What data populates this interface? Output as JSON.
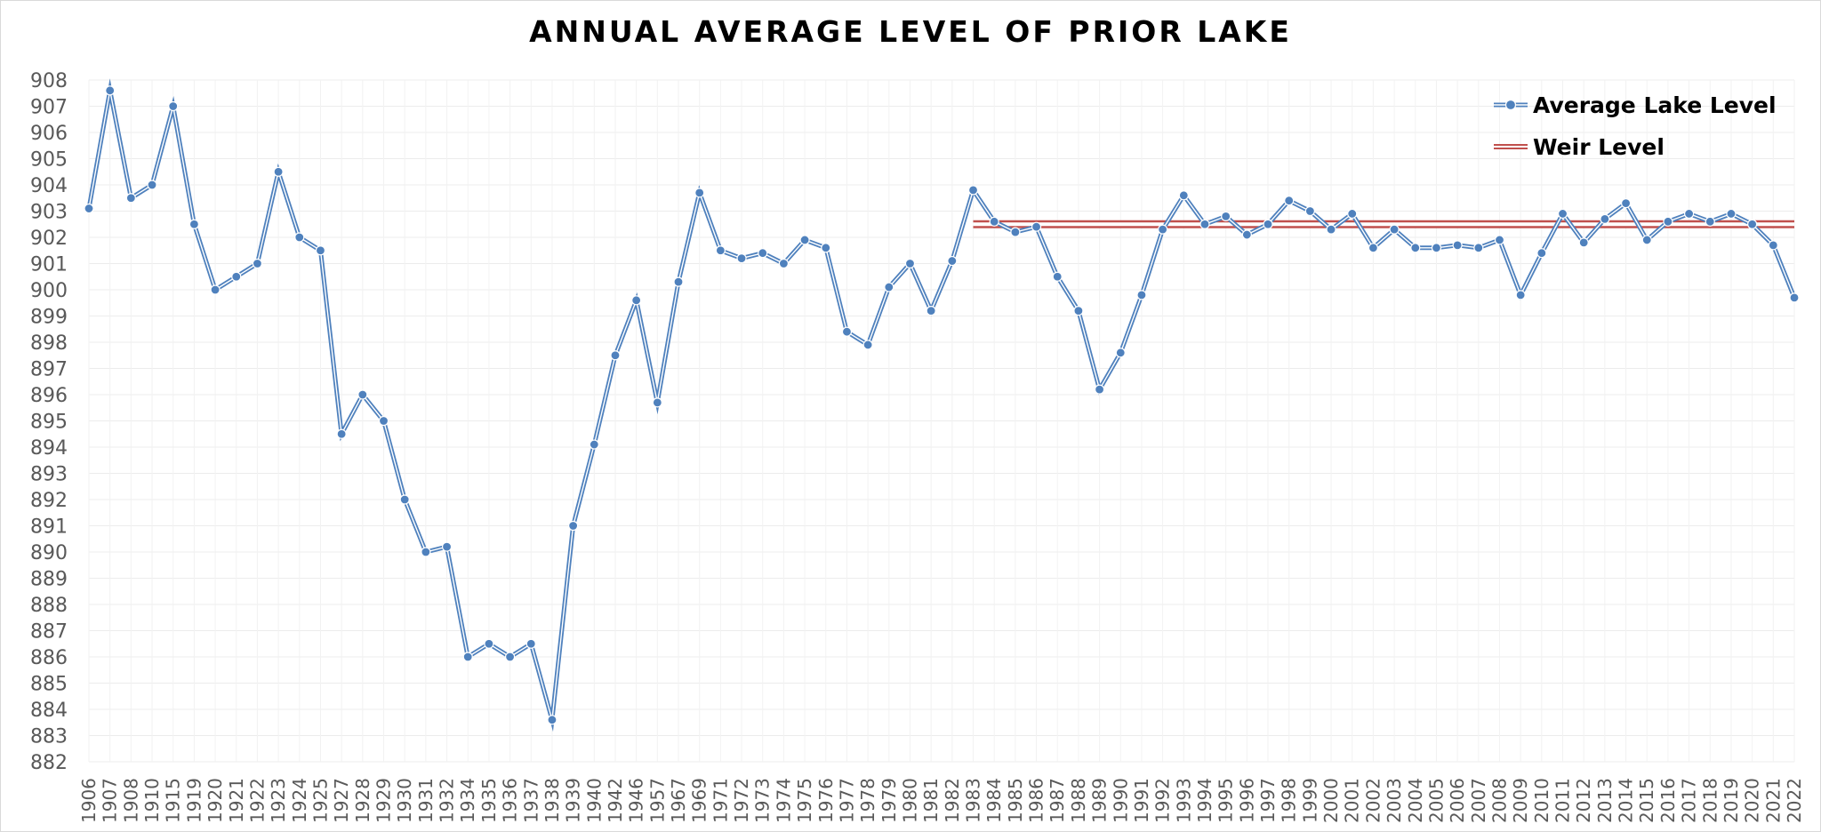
{
  "chart_data": {
    "type": "line",
    "title": "ANNUAL AVERAGE LEVEL OF PRIOR LAKE",
    "xlabel": "",
    "ylabel": "",
    "ylim": [
      882,
      908
    ],
    "yticks": [
      882,
      883,
      884,
      885,
      886,
      887,
      888,
      889,
      890,
      891,
      892,
      893,
      894,
      895,
      896,
      897,
      898,
      899,
      900,
      901,
      902,
      903,
      904,
      905,
      906,
      907,
      908
    ],
    "grid": true,
    "legend_position": "top-right",
    "categories": [
      "1906",
      "1907",
      "1908",
      "1910",
      "1915",
      "1919",
      "1920",
      "1921",
      "1922",
      "1923",
      "1924",
      "1925",
      "1927",
      "1928",
      "1929",
      "1930",
      "1931",
      "1932",
      "1934",
      "1935",
      "1936",
      "1937",
      "1938",
      "1939",
      "1940",
      "1942",
      "1946",
      "1957",
      "1967",
      "1969",
      "1971",
      "1972",
      "1973",
      "1974",
      "1975",
      "1976",
      "1977",
      "1978",
      "1979",
      "1980",
      "1981",
      "1982",
      "1983",
      "1984",
      "1985",
      "1986",
      "1987",
      "1988",
      "1989",
      "1990",
      "1991",
      "1992",
      "1993",
      "1994",
      "1995",
      "1996",
      "1997",
      "1998",
      "1999",
      "2000",
      "2001",
      "2002",
      "2003",
      "2004",
      "2005",
      "2006",
      "2007",
      "2008",
      "2009",
      "2010",
      "2011",
      "2012",
      "2013",
      "2014",
      "2015",
      "2016",
      "2017",
      "2018",
      "2019",
      "2020",
      "2021",
      "2022"
    ],
    "series": [
      {
        "name": "Average Lake Level",
        "color": "#4f81bd",
        "values": [
          903.1,
          907.6,
          903.5,
          904.0,
          907.0,
          902.5,
          900.0,
          900.5,
          901.0,
          904.5,
          902.0,
          901.5,
          894.5,
          896.0,
          895.0,
          892.0,
          890.0,
          890.2,
          886.0,
          886.5,
          886.0,
          886.5,
          883.6,
          891.0,
          894.1,
          897.5,
          899.6,
          895.7,
          900.3,
          903.7,
          901.5,
          901.2,
          901.4,
          901.0,
          901.9,
          901.6,
          898.4,
          897.9,
          900.1,
          901.0,
          899.2,
          901.1,
          903.8,
          902.6,
          902.2,
          902.4,
          900.5,
          899.2,
          896.2,
          897.6,
          899.8,
          902.3,
          903.6,
          902.5,
          902.8,
          902.1,
          902.5,
          903.4,
          903.0,
          902.3,
          902.9,
          901.6,
          902.3,
          901.6,
          901.6,
          901.7,
          901.6,
          901.9,
          899.8,
          901.4,
          902.9,
          901.8,
          902.7,
          903.3,
          901.9,
          902.6,
          902.9,
          902.6,
          902.9,
          902.5,
          901.7,
          899.7
        ]
      },
      {
        "name": "Weir Level",
        "color": "#c0504d",
        "from_category": "1983",
        "to_category": "2022",
        "value": 902.5
      }
    ]
  }
}
